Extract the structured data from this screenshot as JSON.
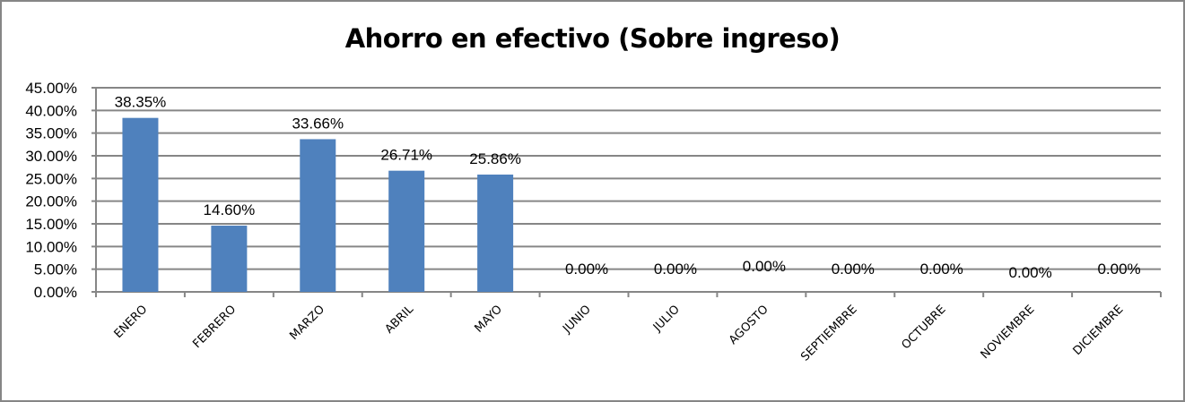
{
  "chart_data": {
    "type": "bar",
    "title": "Ahorro en efectivo (Sobre ingreso)",
    "xlabel": "",
    "ylabel": "",
    "categories": [
      "ENERO",
      "FEBRERO",
      "MARZO",
      "ABRIL",
      "MAYO",
      "JUNIO",
      "JULIO",
      "AGOSTO",
      "SEPTIEMBRE",
      "OCTUBRE",
      "NOVIEMBRE",
      "DICIEMBRE"
    ],
    "values": [
      38.35,
      14.6,
      33.66,
      26.71,
      25.86,
      0.0,
      0.0,
      0.0,
      0.0,
      0.0,
      0.0,
      0.0
    ],
    "data_labels": [
      "38.35%",
      "14.60%",
      "33.66%",
      "26.71%",
      "25.86%",
      "0.00%",
      "0.00%",
      "0.00%",
      "0.00%",
      "0.00%",
      "0.00%",
      "0.00%"
    ],
    "ylim": [
      0,
      45
    ],
    "yticks": [
      "0.00%",
      "5.00%",
      "10.00%",
      "15.00%",
      "20.00%",
      "25.00%",
      "30.00%",
      "35.00%",
      "40.00%",
      "45.00%"
    ],
    "grid": true,
    "legend": "none",
    "colors": {
      "bar": "#4f81bd",
      "grid": "#868686",
      "border": "#868686"
    }
  }
}
